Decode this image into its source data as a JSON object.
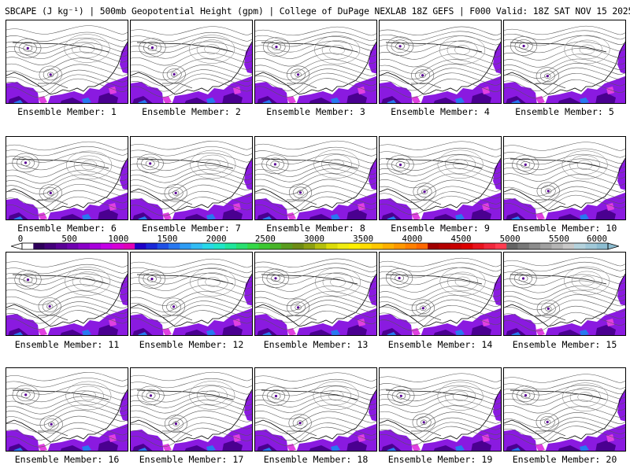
{
  "title": "SBCAPE (J kg⁻¹) | 500mb Geopotential Height (gpm) | College of DuPage NEXLAB 18Z GEFS | F000 Valid: 18Z SAT NOV 15 2025",
  "members": [
    {
      "label": "Ensemble Member: 1"
    },
    {
      "label": "Ensemble Member: 2"
    },
    {
      "label": "Ensemble Member: 3"
    },
    {
      "label": "Ensemble Member: 4"
    },
    {
      "label": "Ensemble Member: 5"
    },
    {
      "label": "Ensemble Member: 6"
    },
    {
      "label": "Ensemble Member: 7"
    },
    {
      "label": "Ensemble Member: 8"
    },
    {
      "label": "Ensemble Member: 9"
    },
    {
      "label": "Ensemble Member: 10"
    },
    {
      "label": "Ensemble Member: 11"
    },
    {
      "label": "Ensemble Member: 12"
    },
    {
      "label": "Ensemble Member: 13"
    },
    {
      "label": "Ensemble Member: 14"
    },
    {
      "label": "Ensemble Member: 15"
    },
    {
      "label": "Ensemble Member: 16"
    },
    {
      "label": "Ensemble Member: 17"
    },
    {
      "label": "Ensemble Member: 18"
    },
    {
      "label": "Ensemble Member: 19"
    },
    {
      "label": "Ensemble Member: 20"
    }
  ],
  "colorbar": {
    "ticks": [
      "0",
      "500",
      "1000",
      "1500",
      "2000",
      "2500",
      "3000",
      "3500",
      "4000",
      "4500",
      "5000",
      "5500",
      "6000"
    ],
    "colors": [
      "#ffffff",
      "#2e005a",
      "#44007a",
      "#5a0096",
      "#7000b0",
      "#8a00c8",
      "#a800dc",
      "#c400e6",
      "#d600d6",
      "#e000b8",
      "#1f00c8",
      "#1a28d8",
      "#1e50e6",
      "#2878f0",
      "#2e9cf4",
      "#32bcf4",
      "#28d8e8",
      "#20e6c8",
      "#20e69c",
      "#28e070",
      "#34d848",
      "#3cc832",
      "#48b428",
      "#5a9c1e",
      "#6e8c14",
      "#8ca010",
      "#b4c00c",
      "#dcdc08",
      "#f0ec10",
      "#fff000",
      "#ffdc00",
      "#ffc800",
      "#ffb000",
      "#ff9800",
      "#ff8000",
      "#ff6800",
      "#a00000",
      "#b40000",
      "#c80000",
      "#dc0000",
      "#e8141e",
      "#f0283c",
      "#ff3c50",
      "#646464",
      "#787878",
      "#8c8c8c",
      "#a0a0a0",
      "#b4b4b4",
      "#c8c8c8",
      "#b4d2dc",
      "#a0c8d8",
      "#8cbcd0"
    ]
  }
}
